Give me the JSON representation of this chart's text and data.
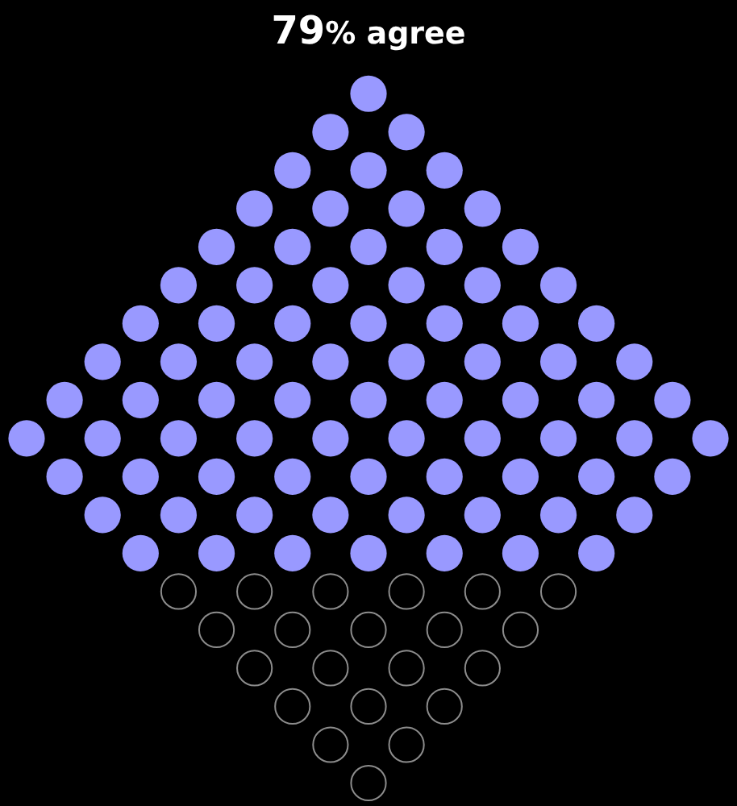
{
  "chart_data": {
    "type": "other",
    "title": "% agree",
    "values": [
      79
    ],
    "value_labels": [
      "79"
    ],
    "color": "#9999ff"
  }
}
